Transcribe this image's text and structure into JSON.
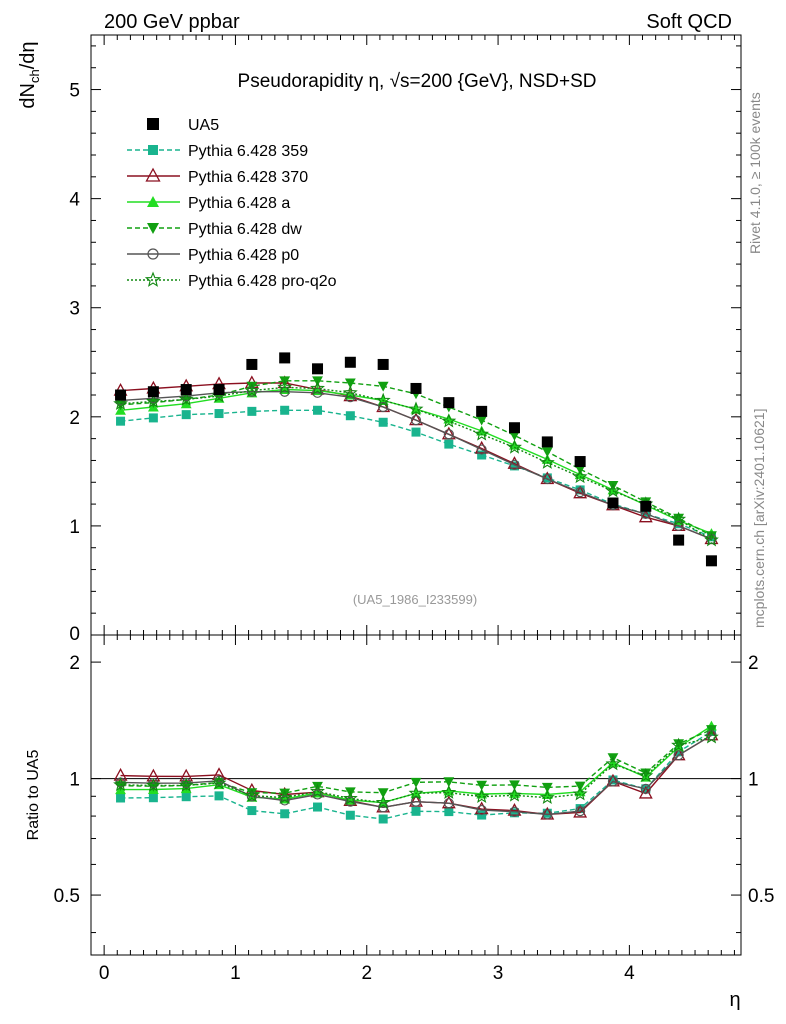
{
  "header": {
    "left": "200 GeV ppbar",
    "right": "Soft QCD"
  },
  "side_labels": {
    "rivet": "Rivet 4.1.0, ≥ 100k events",
    "mcplots": "mcplots.cern.ch [arXiv:2401.10621]"
  },
  "chart_data": {
    "type": "line",
    "title": "Pseudorapidity η, √s=200 {GeV}, NSD+SD",
    "ylabel": "dN_ch/dη",
    "xlabel": "η",
    "ratio_ylabel": "Ratio to UA5",
    "watermark": "(UA5_1986_I233599)",
    "xlim": [
      -0.1,
      4.85
    ],
    "ylim": [
      0,
      5.5
    ],
    "ratio_ylim": [
      0.35,
      2.35
    ],
    "x_ticks": [
      0,
      1,
      2,
      3,
      4
    ],
    "y_ticks": [
      1,
      2,
      3,
      4,
      5
    ],
    "y_tick_labels": [
      "1",
      "2",
      "3",
      "4",
      "5"
    ],
    "ratio_ticks": [
      0.5,
      1,
      2
    ],
    "ratio_tick_labels": [
      "0.5",
      "1",
      "2"
    ],
    "x": [
      0.125,
      0.375,
      0.625,
      0.875,
      1.125,
      1.375,
      1.625,
      1.875,
      2.125,
      2.375,
      2.625,
      2.875,
      3.125,
      3.375,
      3.625,
      3.875,
      4.125,
      4.375,
      4.625
    ],
    "data": {
      "name": "UA5",
      "values": [
        2.2,
        2.23,
        2.25,
        2.25,
        2.48,
        2.54,
        2.44,
        2.5,
        2.48,
        2.26,
        2.13,
        2.05,
        1.9,
        1.77,
        1.59,
        1.21,
        1.18,
        0.87,
        0.68
      ]
    },
    "series": [
      {
        "name": "Pythia 6.428 359",
        "color": "#19b48e",
        "dash": "5,3",
        "marker": "square",
        "values": [
          1.96,
          1.99,
          2.02,
          2.03,
          2.05,
          2.06,
          2.06,
          2.01,
          1.95,
          1.86,
          1.75,
          1.65,
          1.55,
          1.44,
          1.33,
          1.2,
          1.11,
          1.02,
          0.9
        ]
      },
      {
        "name": "Pythia 6.428 370",
        "color": "#8b1020",
        "dash": "",
        "marker": "triangle-open",
        "values": [
          2.24,
          2.26,
          2.28,
          2.3,
          2.31,
          2.31,
          2.25,
          2.19,
          2.09,
          1.97,
          1.84,
          1.71,
          1.57,
          1.43,
          1.3,
          1.19,
          1.08,
          1.0,
          0.88
        ]
      },
      {
        "name": "Pythia 6.428 a",
        "color": "#22dd22",
        "dash": "",
        "marker": "triangle",
        "values": [
          2.06,
          2.09,
          2.12,
          2.17,
          2.22,
          2.25,
          2.24,
          2.2,
          2.15,
          2.07,
          1.98,
          1.87,
          1.74,
          1.61,
          1.47,
          1.33,
          1.19,
          1.05,
          0.93
        ]
      },
      {
        "name": "Pythia 6.428 dw",
        "color": "#11a011",
        "dash": "5,3",
        "marker": "triangle-down",
        "values": [
          2.11,
          2.13,
          2.16,
          2.2,
          2.28,
          2.33,
          2.33,
          2.31,
          2.28,
          2.21,
          2.09,
          1.97,
          1.83,
          1.68,
          1.52,
          1.37,
          1.22,
          1.07,
          0.91
        ]
      },
      {
        "name": "Pythia 6.428 p0",
        "color": "#555555",
        "dash": "",
        "marker": "circle-open",
        "values": [
          2.15,
          2.17,
          2.19,
          2.22,
          2.23,
          2.23,
          2.22,
          2.18,
          2.09,
          1.97,
          1.84,
          1.7,
          1.56,
          1.43,
          1.31,
          1.19,
          1.11,
          1.0,
          0.88
        ]
      },
      {
        "name": "Pythia 6.428 pro-q2o",
        "color": "#118811",
        "dash": "2,2",
        "marker": "star",
        "values": [
          2.12,
          2.14,
          2.16,
          2.19,
          2.24,
          2.27,
          2.26,
          2.22,
          2.15,
          2.07,
          1.96,
          1.84,
          1.72,
          1.58,
          1.45,
          1.32,
          1.2,
          1.06,
          0.87
        ]
      }
    ]
  }
}
